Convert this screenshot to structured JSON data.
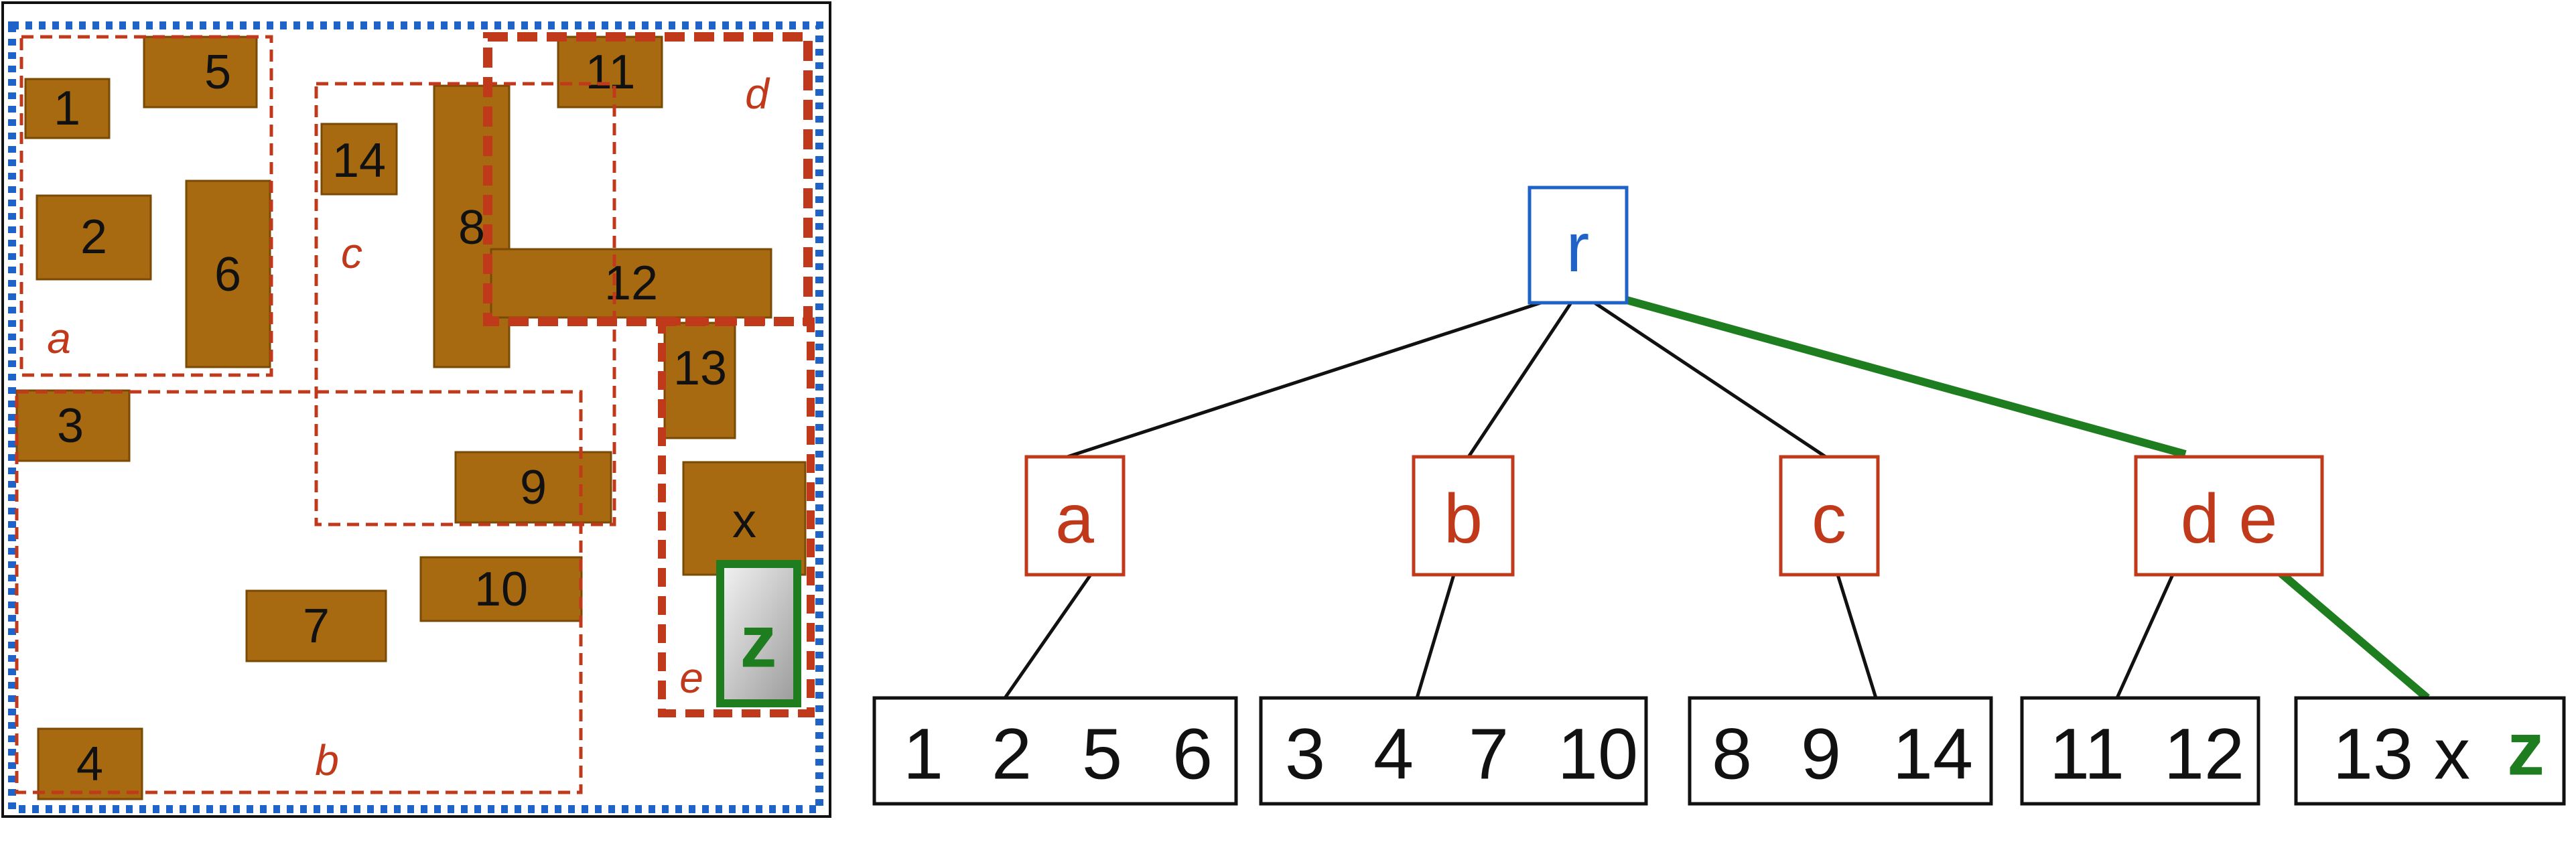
{
  "spatial_panel": {
    "rectangles": [
      {
        "id": "r1",
        "label": "1"
      },
      {
        "id": "r2",
        "label": "2"
      },
      {
        "id": "r3",
        "label": "3"
      },
      {
        "id": "r4",
        "label": "4"
      },
      {
        "id": "r5",
        "label": "5"
      },
      {
        "id": "r6",
        "label": "6"
      },
      {
        "id": "r7",
        "label": "7"
      },
      {
        "id": "r8",
        "label": "8"
      },
      {
        "id": "r9",
        "label": "9"
      },
      {
        "id": "r10",
        "label": "10"
      },
      {
        "id": "r11",
        "label": "11"
      },
      {
        "id": "r12",
        "label": "12"
      },
      {
        "id": "r13",
        "label": "13"
      },
      {
        "id": "r14",
        "label": "14"
      },
      {
        "id": "rx",
        "label": "x"
      }
    ],
    "new_item": {
      "label": "z"
    },
    "regions": [
      {
        "id": "a",
        "label": "a"
      },
      {
        "id": "b",
        "label": "b"
      },
      {
        "id": "c",
        "label": "c"
      },
      {
        "id": "d",
        "label": "d"
      },
      {
        "id": "e",
        "label": "e"
      }
    ]
  },
  "tree": {
    "root": {
      "label": "r"
    },
    "internal_nodes": [
      {
        "id": "a",
        "label": "a"
      },
      {
        "id": "b",
        "label": "b"
      },
      {
        "id": "c",
        "label": "c"
      },
      {
        "id": "de",
        "label": "d e"
      }
    ],
    "leaves": [
      {
        "id": "leaf-a",
        "items": [
          "1",
          "2",
          "5",
          "6"
        ]
      },
      {
        "id": "leaf-b",
        "items": [
          "3",
          "4",
          "7",
          "10"
        ]
      },
      {
        "id": "leaf-c",
        "items": [
          "8",
          "9",
          "14"
        ]
      },
      {
        "id": "leaf-d",
        "items": [
          "11",
          "12"
        ]
      },
      {
        "id": "leaf-e",
        "items": [
          "13",
          "x"
        ],
        "highlight": "z"
      }
    ]
  },
  "colors": {
    "rect_fill": "#a86a10",
    "region_dash": "#c0391b",
    "root_box": "#1f63c9",
    "highlight": "#1e7d1e"
  }
}
